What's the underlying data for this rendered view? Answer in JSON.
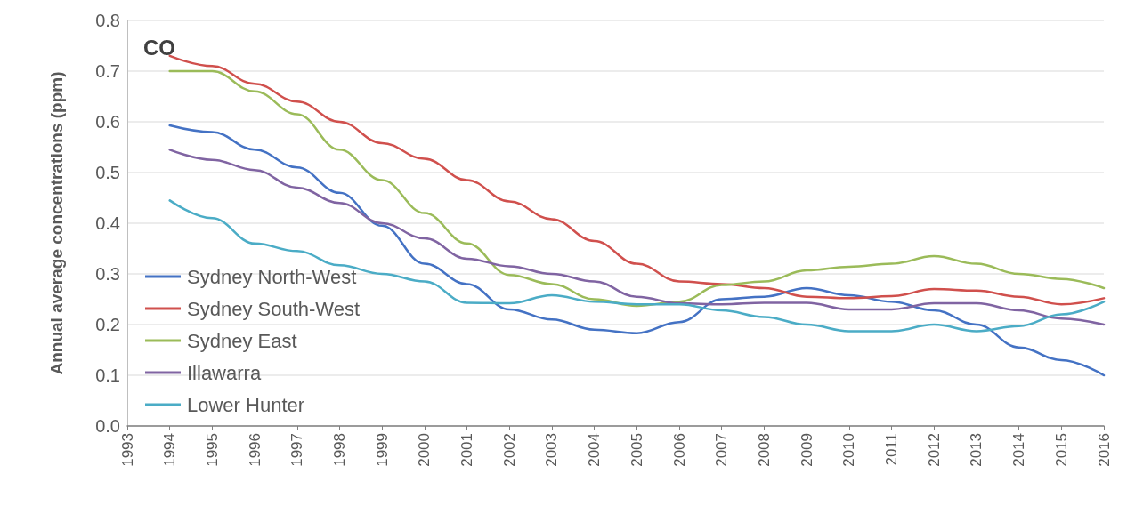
{
  "chart_data": {
    "type": "line",
    "title": "CO",
    "ylabel": "Annual average concentrations (ppm)",
    "x": [
      1994,
      1995,
      1996,
      1997,
      1998,
      1999,
      2000,
      2001,
      2002,
      2003,
      2004,
      2005,
      2006,
      2007,
      2008,
      2009,
      2010,
      2011,
      2012,
      2013,
      2014,
      2015,
      2016
    ],
    "xlim": [
      1993,
      2016
    ],
    "xticks": [
      1993,
      1994,
      1995,
      1996,
      1997,
      1998,
      1999,
      2000,
      2001,
      2002,
      2003,
      2004,
      2005,
      2006,
      2007,
      2008,
      2009,
      2010,
      2011,
      2012,
      2013,
      2014,
      2015,
      2016
    ],
    "ylim": [
      0,
      0.8
    ],
    "yticks": [
      {
        "value": 0,
        "label": "0.0"
      },
      {
        "value": 0.1,
        "label": "0.1"
      },
      {
        "value": 0.2,
        "label": "0.2"
      },
      {
        "value": 0.3,
        "label": "0.3"
      },
      {
        "value": 0.4,
        "label": "0.4"
      },
      {
        "value": 0.5,
        "label": "0.5"
      },
      {
        "value": 0.6,
        "label": "0.6"
      },
      {
        "value": 0.7,
        "label": "0.7"
      },
      {
        "value": 0.8,
        "label": "0.8"
      }
    ],
    "grid": "y",
    "legend": "bottom left",
    "marker": "none",
    "line_style": "solid",
    "series": [
      {
        "name": "Sydney North-West",
        "color": "#4472c4",
        "values": [
          0.593,
          0.58,
          0.545,
          0.51,
          0.46,
          0.395,
          0.32,
          0.28,
          0.23,
          0.21,
          0.19,
          0.183,
          0.205,
          0.25,
          0.255,
          0.272,
          0.258,
          0.245,
          0.228,
          0.2,
          0.155,
          0.13,
          0.1
        ]
      },
      {
        "name": "Sydney South-West",
        "color": "#d0504d",
        "values": [
          0.73,
          0.71,
          0.675,
          0.64,
          0.6,
          0.558,
          0.527,
          0.485,
          0.443,
          0.408,
          0.365,
          0.32,
          0.285,
          0.28,
          0.272,
          0.255,
          0.252,
          0.256,
          0.27,
          0.267,
          0.255,
          0.24,
          0.252
        ]
      },
      {
        "name": "Sydney East",
        "color": "#9bbb59",
        "values": [
          0.7,
          0.7,
          0.66,
          0.615,
          0.545,
          0.485,
          0.42,
          0.36,
          0.298,
          0.28,
          0.25,
          0.237,
          0.245,
          0.278,
          0.285,
          0.307,
          0.314,
          0.32,
          0.335,
          0.32,
          0.3,
          0.29,
          0.272
        ]
      },
      {
        "name": "Illawarra",
        "color": "#8064a2",
        "values": [
          0.545,
          0.525,
          0.505,
          0.47,
          0.44,
          0.4,
          0.37,
          0.33,
          0.315,
          0.3,
          0.285,
          0.255,
          0.242,
          0.24,
          0.243,
          0.243,
          0.23,
          0.23,
          0.242,
          0.242,
          0.228,
          0.212,
          0.2
        ]
      },
      {
        "name": "Lower Hunter",
        "color": "#4bacc6",
        "values": [
          0.445,
          0.41,
          0.36,
          0.345,
          0.317,
          0.3,
          0.285,
          0.243,
          0.242,
          0.258,
          0.245,
          0.24,
          0.24,
          0.228,
          0.215,
          0.2,
          0.187,
          0.187,
          0.2,
          0.187,
          0.197,
          0.22,
          0.245
        ]
      }
    ]
  }
}
